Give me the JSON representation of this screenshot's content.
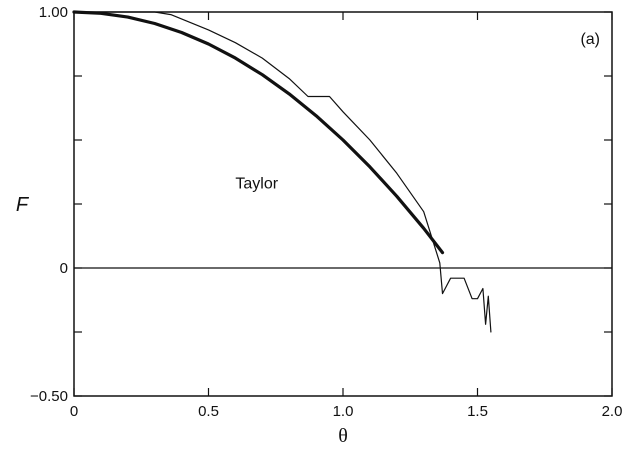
{
  "chart_data": {
    "type": "line",
    "panel_label": "(a)",
    "xlabel": "θ",
    "ylabel": "F",
    "xlim": [
      0,
      2.0
    ],
    "ylim": [
      -0.5,
      1.0
    ],
    "x_ticks": [
      0,
      0.5,
      1.0,
      1.5,
      2.0
    ],
    "x_tick_labels": [
      "0",
      "0.5",
      "1.0",
      "1.5",
      "2.0"
    ],
    "y_tick_labels": [
      {
        "value": 1.0,
        "label": "1.00"
      },
      {
        "value": 0,
        "label": "0"
      },
      {
        "value": -0.5,
        "label": "−0.50"
      }
    ],
    "y_minor_ticks": [
      0.75,
      0.5,
      0.25,
      -0.25
    ],
    "reference_line_y": 0,
    "grid": false,
    "series": [
      {
        "name": "Taylor",
        "style": "thick",
        "x": [
          0,
          0.1,
          0.2,
          0.3,
          0.4,
          0.5,
          0.6,
          0.7,
          0.8,
          0.9,
          1.0,
          1.1,
          1.2,
          1.3,
          1.37
        ],
        "y": [
          1.0,
          0.995,
          0.98,
          0.955,
          0.92,
          0.875,
          0.82,
          0.755,
          0.68,
          0.595,
          0.5,
          0.395,
          0.28,
          0.155,
          0.06
        ]
      },
      {
        "name": "",
        "style": "thin",
        "x": [
          0,
          0.1,
          0.2,
          0.3,
          0.36,
          0.5,
          0.6,
          0.7,
          0.8,
          0.87,
          0.95,
          1.0,
          1.1,
          1.2,
          1.3,
          1.36,
          1.37,
          1.38,
          1.4,
          1.45,
          1.48,
          1.5,
          1.52,
          1.53,
          1.54,
          1.55
        ],
        "y": [
          1.0,
          1.0,
          1.0,
          1.0,
          0.99,
          0.93,
          0.88,
          0.82,
          0.74,
          0.67,
          0.67,
          0.61,
          0.5,
          0.37,
          0.22,
          0.02,
          -0.1,
          -0.08,
          -0.04,
          -0.04,
          -0.12,
          -0.12,
          -0.08,
          -0.22,
          -0.11,
          -0.25
        ]
      }
    ],
    "annotations": [
      {
        "text": "Taylor",
        "x": 0.6,
        "y": 0.31
      }
    ]
  }
}
